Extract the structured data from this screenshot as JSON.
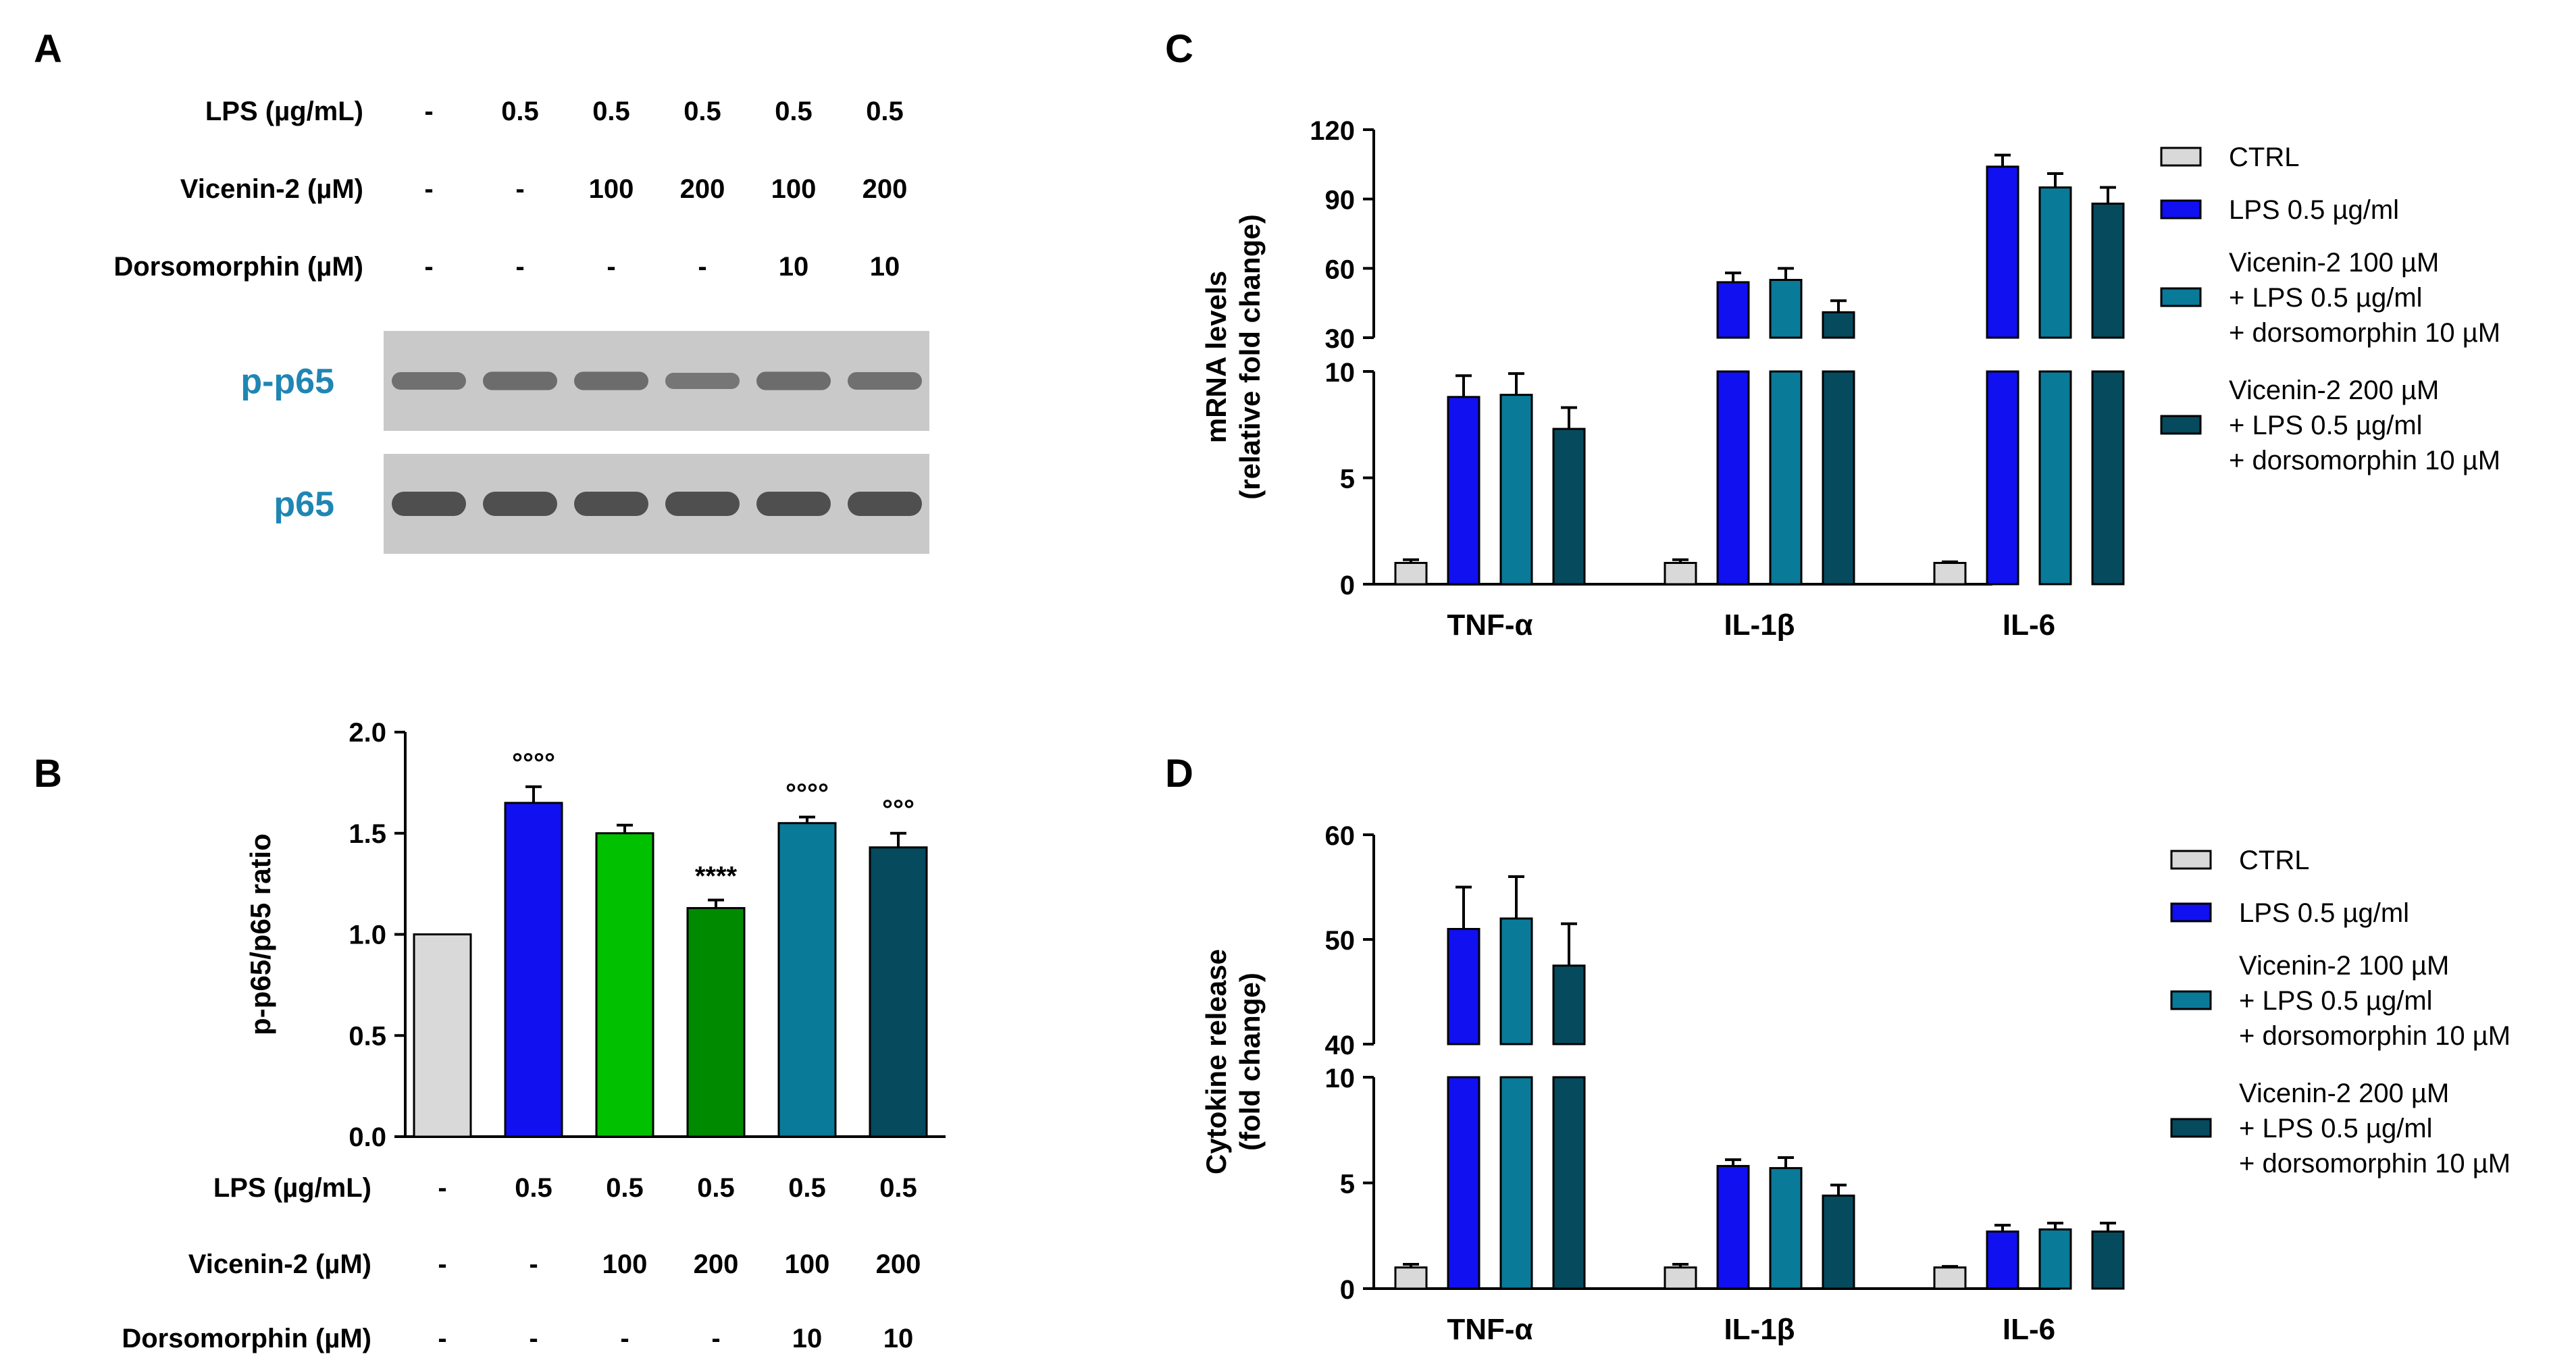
{
  "colors": {
    "ctrl": "#d9d9d9",
    "lps": "#1010f0",
    "vic100": "#00c000",
    "vic200": "#008a00",
    "vic100_dorso": "#0a7a99",
    "vic200_dorso": "#064a5e",
    "blot_label": "#1f86b4"
  },
  "panel_a": {
    "letter": "A",
    "conditions": [
      {
        "label": "LPS (µg/mL)",
        "values": [
          "-",
          "0.5",
          "0.5",
          "0.5",
          "0.5",
          "0.5"
        ]
      },
      {
        "label": "Vicenin-2 (µM)",
        "values": [
          "-",
          "-",
          "100",
          "200",
          "100",
          "200"
        ]
      },
      {
        "label": "Dorsomorphin (µM)",
        "values": [
          "-",
          "-",
          "-",
          "-",
          "10",
          "10"
        ]
      }
    ],
    "blots": [
      {
        "label": "p-p65",
        "band_intensity": [
          0.55,
          0.6,
          0.6,
          0.45,
          0.6,
          0.55
        ]
      },
      {
        "label": "p65",
        "band_intensity": [
          1.0,
          1.0,
          1.0,
          1.0,
          1.0,
          1.0
        ]
      }
    ]
  },
  "chart_data": [
    {
      "panel": "B",
      "type": "bar",
      "ylabel": "p-p65/p65 ratio",
      "ylim": [
        0,
        2.0
      ],
      "yticks": [
        "0.0",
        "0.5",
        "1.0",
        "1.5",
        "2.0"
      ],
      "values": [
        1.0,
        1.65,
        1.5,
        1.13,
        1.55,
        1.43
      ],
      "errors": [
        0,
        0.08,
        0.04,
        0.04,
        0.03,
        0.07
      ],
      "annotations": [
        "",
        "°°°°",
        "",
        "****",
        "°°°°",
        "°°°"
      ],
      "bar_colors": [
        "#d9d9d9",
        "#1010f0",
        "#00c000",
        "#008a00",
        "#0a7a99",
        "#064a5e"
      ],
      "conditions": [
        {
          "label": "LPS (µg/mL)",
          "values": [
            "-",
            "0.5",
            "0.5",
            "0.5",
            "0.5",
            "0.5"
          ]
        },
        {
          "label": "Vicenin-2 (µM)",
          "values": [
            "-",
            "-",
            "100",
            "200",
            "100",
            "200"
          ]
        },
        {
          "label": "Dorsomorphin (µM)",
          "values": [
            "-",
            "-",
            "-",
            "-",
            "10",
            "10"
          ]
        }
      ]
    },
    {
      "panel": "C",
      "type": "bar",
      "ylabel": [
        "mRNA levels",
        "(relative fold change)"
      ],
      "broken_axis": {
        "lower": {
          "ylim": [
            0,
            10
          ],
          "yticks": [
            "0",
            "5",
            "10"
          ]
        },
        "upper": {
          "ylim": [
            30,
            120
          ],
          "yticks": [
            "30",
            "60",
            "90",
            "120"
          ]
        }
      },
      "categories": [
        "TNF-α",
        "IL-1β",
        "IL-6"
      ],
      "series": [
        {
          "name": "CTRL",
          "values": [
            1.0,
            1.0,
            1.0
          ],
          "errors": [
            0.15,
            0.15,
            0.05
          ]
        },
        {
          "name": "LPS 0.5 µg/ml",
          "values": [
            8.8,
            54,
            104
          ],
          "errors": [
            1.0,
            4,
            5
          ]
        },
        {
          "name": "Vicenin-2 100 µM + LPS 0.5 µg/ml + dorsomorphin 10 µM",
          "values": [
            8.9,
            55,
            95
          ],
          "errors": [
            1.0,
            5,
            6
          ]
        },
        {
          "name": "Vicenin-2 200 µM + LPS 0.5 µg/ml + dorsomorphin 10 µM",
          "values": [
            7.3,
            41,
            88
          ],
          "errors": [
            1.0,
            5,
            7
          ]
        }
      ],
      "legend": {
        "position": "right",
        "entries": [
          {
            "lines": [
              "CTRL"
            ]
          },
          {
            "lines": [
              "LPS 0.5 µg/ml"
            ]
          },
          {
            "lines": [
              "Vicenin-2 100 µM",
              "+ LPS 0.5 µg/ml",
              "+ dorsomorphin 10 µM"
            ]
          },
          {
            "lines": [
              "Vicenin-2 200 µM",
              "+ LPS 0.5 µg/ml",
              "+ dorsomorphin 10 µM"
            ]
          }
        ]
      }
    },
    {
      "panel": "D",
      "type": "bar",
      "ylabel": [
        "Cytokine release",
        "(fold change)"
      ],
      "broken_axis": {
        "lower": {
          "ylim": [
            0,
            10
          ],
          "yticks": [
            "0",
            "5",
            "10"
          ]
        },
        "upper": {
          "ylim": [
            40,
            60
          ],
          "yticks": [
            "40",
            "50",
            "60"
          ]
        }
      },
      "categories": [
        "TNF-α",
        "IL-1β",
        "IL-6"
      ],
      "series": [
        {
          "name": "CTRL",
          "values": [
            1.0,
            1.0,
            1.0
          ],
          "errors": [
            0.15,
            0.15,
            0.05
          ]
        },
        {
          "name": "LPS 0.5 µg/ml",
          "values": [
            51,
            5.8,
            2.7
          ],
          "errors": [
            4,
            0.3,
            0.3
          ]
        },
        {
          "name": "Vicenin-2 100 µM + LPS 0.5 µg/ml + dorsomorphin 10 µM",
          "values": [
            52,
            5.7,
            2.8
          ],
          "errors": [
            4,
            0.5,
            0.3
          ]
        },
        {
          "name": "Vicenin-2 200 µM + LPS 0.5 µg/ml + dorsomorphin 10 µM",
          "values": [
            47.5,
            4.4,
            2.7
          ],
          "errors": [
            4,
            0.5,
            0.4
          ]
        }
      ],
      "legend": {
        "position": "right",
        "entries": [
          {
            "lines": [
              "CTRL"
            ]
          },
          {
            "lines": [
              "LPS 0.5 µg/ml"
            ]
          },
          {
            "lines": [
              "Vicenin-2 100 µM",
              "+ LPS 0.5 µg/ml",
              "+ dorsomorphin 10 µM"
            ]
          },
          {
            "lines": [
              "Vicenin-2 200 µM",
              "+ LPS 0.5 µg/ml",
              "+ dorsomorphin 10 µM"
            ]
          }
        ]
      }
    }
  ],
  "panel_b_letter": "B",
  "panel_c_letter": "C",
  "panel_d_letter": "D"
}
